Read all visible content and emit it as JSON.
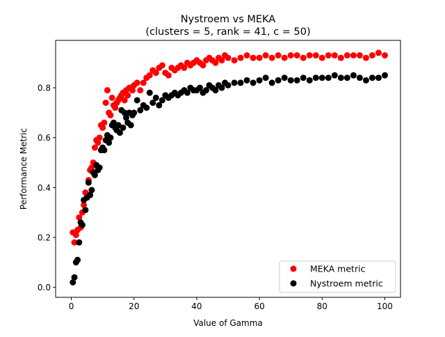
{
  "chart_data": {
    "type": "scatter",
    "title": "Nystroem vs MEKA",
    "subtitle": "(clusters = 5, rank = 41, c = 50)",
    "xlabel": "Value of Gamma",
    "ylabel": "Performance Metric",
    "xlim": [
      -5,
      105
    ],
    "ylim": [
      -0.04,
      0.99
    ],
    "xticks": [
      0,
      20,
      40,
      60,
      80,
      100
    ],
    "yticks": [
      0.0,
      0.2,
      0.4,
      0.6,
      0.8
    ],
    "ytick_labels": [
      "0.0",
      "0.2",
      "0.4",
      "0.6",
      "0.8"
    ],
    "grid": false,
    "legend_position": "lower-right",
    "series": [
      {
        "name": "MEKA metric",
        "color": "#ff0000",
        "x": [
          0.5,
          1,
          1.5,
          2,
          2.5,
          3,
          3.5,
          4,
          4.5,
          5,
          5.5,
          6,
          6.5,
          7,
          7.5,
          8,
          8.5,
          9,
          9.5,
          10,
          10.5,
          11,
          11.5,
          12,
          12.5,
          13,
          13.5,
          14,
          14.5,
          15,
          15.5,
          16,
          16.5,
          17,
          17.5,
          18,
          18.5,
          19,
          19.5,
          20,
          21,
          22,
          23,
          24,
          25,
          26,
          27,
          28,
          29,
          30,
          31,
          32,
          33,
          34,
          35,
          36,
          37,
          38,
          39,
          40,
          41,
          42,
          43,
          44,
          45,
          46,
          47,
          48,
          49,
          50,
          52,
          54,
          56,
          58,
          60,
          62,
          64,
          66,
          68,
          70,
          72,
          74,
          76,
          78,
          80,
          82,
          84,
          86,
          88,
          90,
          92,
          94,
          96,
          98,
          100
        ],
        "y": [
          0.22,
          0.18,
          0.21,
          0.23,
          0.28,
          0.24,
          0.3,
          0.33,
          0.38,
          0.36,
          0.43,
          0.47,
          0.48,
          0.5,
          0.56,
          0.59,
          0.58,
          0.6,
          0.65,
          0.64,
          0.66,
          0.74,
          0.79,
          0.7,
          0.69,
          0.76,
          0.73,
          0.72,
          0.74,
          0.75,
          0.76,
          0.77,
          0.78,
          0.75,
          0.79,
          0.77,
          0.8,
          0.8,
          0.79,
          0.81,
          0.82,
          0.79,
          0.82,
          0.84,
          0.85,
          0.87,
          0.86,
          0.88,
          0.89,
          0.86,
          0.85,
          0.88,
          0.87,
          0.88,
          0.89,
          0.88,
          0.9,
          0.89,
          0.9,
          0.91,
          0.9,
          0.89,
          0.91,
          0.92,
          0.91,
          0.9,
          0.92,
          0.91,
          0.93,
          0.92,
          0.91,
          0.92,
          0.93,
          0.92,
          0.92,
          0.93,
          0.92,
          0.93,
          0.92,
          0.93,
          0.93,
          0.92,
          0.93,
          0.93,
          0.92,
          0.93,
          0.93,
          0.92,
          0.93,
          0.93,
          0.93,
          0.92,
          0.93,
          0.94,
          0.93
        ]
      },
      {
        "name": "Nystroem metric",
        "color": "#000000",
        "x": [
          0.5,
          1,
          1.5,
          2,
          2.5,
          3,
          3.5,
          4,
          4.5,
          5,
          5.5,
          6,
          6.5,
          7,
          7.5,
          8,
          8.5,
          9,
          9.5,
          10,
          10.5,
          11,
          11.5,
          12,
          12.5,
          13,
          13.5,
          14,
          14.5,
          15,
          15.5,
          16,
          16.5,
          17,
          17.5,
          18,
          18.5,
          19,
          19.5,
          20,
          21,
          22,
          23,
          24,
          25,
          26,
          27,
          28,
          29,
          30,
          31,
          32,
          33,
          34,
          35,
          36,
          37,
          38,
          39,
          40,
          41,
          42,
          43,
          44,
          45,
          46,
          47,
          48,
          49,
          50,
          52,
          54,
          56,
          58,
          60,
          62,
          64,
          66,
          68,
          70,
          72,
          74,
          76,
          78,
          80,
          82,
          84,
          86,
          88,
          90,
          92,
          94,
          96,
          98,
          100
        ],
        "y": [
          0.02,
          0.04,
          0.1,
          0.11,
          0.18,
          0.26,
          0.25,
          0.35,
          0.31,
          0.36,
          0.42,
          0.37,
          0.39,
          0.46,
          0.45,
          0.49,
          0.47,
          0.48,
          0.55,
          0.56,
          0.55,
          0.59,
          0.61,
          0.58,
          0.6,
          0.65,
          0.66,
          0.64,
          0.63,
          0.65,
          0.62,
          0.71,
          0.64,
          0.7,
          0.68,
          0.66,
          0.7,
          0.65,
          0.69,
          0.7,
          0.75,
          0.71,
          0.73,
          0.72,
          0.78,
          0.74,
          0.76,
          0.73,
          0.75,
          0.77,
          0.76,
          0.77,
          0.78,
          0.77,
          0.78,
          0.79,
          0.78,
          0.8,
          0.79,
          0.79,
          0.8,
          0.78,
          0.79,
          0.81,
          0.8,
          0.79,
          0.81,
          0.8,
          0.82,
          0.81,
          0.82,
          0.82,
          0.83,
          0.82,
          0.83,
          0.84,
          0.82,
          0.83,
          0.84,
          0.83,
          0.83,
          0.84,
          0.83,
          0.84,
          0.84,
          0.84,
          0.85,
          0.84,
          0.84,
          0.85,
          0.84,
          0.83,
          0.84,
          0.84,
          0.85
        ]
      }
    ]
  }
}
